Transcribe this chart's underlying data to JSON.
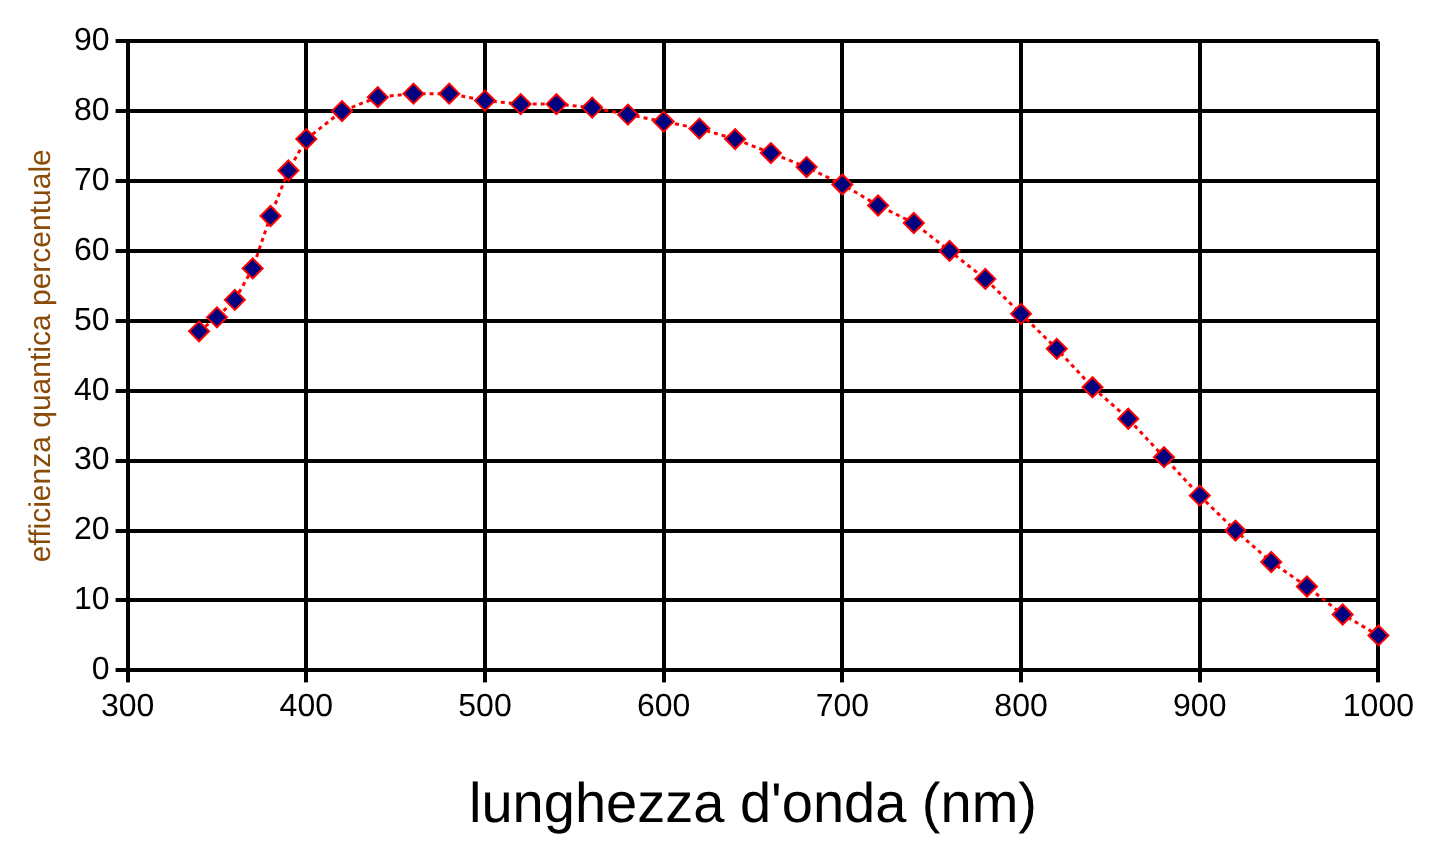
{
  "chart_data": {
    "type": "line",
    "xlabel": "lunghezza d'onda (nm)",
    "ylabel": "efficienza quantica percentuale",
    "x": [
      340,
      350,
      360,
      370,
      380,
      390,
      400,
      420,
      440,
      460,
      480,
      500,
      520,
      540,
      560,
      580,
      600,
      620,
      640,
      660,
      680,
      700,
      720,
      740,
      760,
      780,
      800,
      820,
      840,
      860,
      880,
      900,
      920,
      940,
      960,
      980,
      1000
    ],
    "series": [
      {
        "color": "#ff0000",
        "values": [
          48.5,
          50.5,
          53,
          57.5,
          65,
          71.5,
          76,
          80,
          82,
          82.5,
          82.5,
          81.5,
          81,
          81,
          80.5,
          79.5,
          78.5,
          77.5,
          76,
          74,
          72,
          69.5,
          66.5,
          64,
          60,
          56,
          51,
          46,
          40.5,
          36,
          30.5,
          25,
          20,
          15.5,
          12,
          8,
          5
        ]
      }
    ],
    "xlim": [
      300,
      1000
    ],
    "xticks": [
      300,
      400,
      500,
      600,
      700,
      800,
      900,
      1000
    ],
    "ylim": [
      0,
      90
    ],
    "yticks": [
      0,
      10,
      20,
      30,
      40,
      50,
      60,
      70,
      80,
      90
    ],
    "grid": true,
    "legend": false,
    "marker": "diamond",
    "line_style": "dotted"
  }
}
